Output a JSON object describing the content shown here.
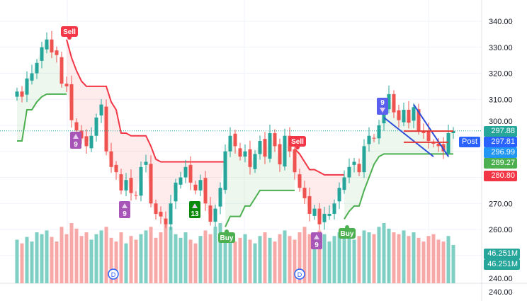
{
  "chart_data": {
    "type": "candlestick",
    "title": "",
    "ylim": [
      240,
      345
    ],
    "y_ticks": [
      "340.00",
      "330.00",
      "320.00",
      "310.00",
      "300.00",
      "270.00",
      "260.00",
      "240.00"
    ],
    "closes": [
      313,
      311,
      318,
      320,
      324,
      330,
      333,
      328,
      327,
      316,
      315,
      302,
      298,
      295,
      292,
      296,
      303,
      308,
      290,
      284,
      282,
      275,
      279,
      274,
      273,
      284,
      286,
      270,
      266,
      265,
      262,
      270,
      278,
      280,
      284,
      278,
      275,
      279,
      270,
      263,
      268,
      276,
      290,
      296,
      292,
      288,
      290,
      284,
      289,
      294,
      288,
      297,
      292,
      285,
      296,
      290,
      282,
      276,
      272,
      266,
      268,
      262,
      266,
      266,
      270,
      276,
      280,
      284,
      286,
      282,
      292,
      296,
      295,
      300,
      307,
      312,
      305,
      302,
      306,
      301,
      307,
      298,
      297,
      294,
      293,
      292,
      290,
      297,
      297.88
    ],
    "volumes": [
      52,
      48,
      55,
      50,
      60,
      58,
      62,
      55,
      50,
      66,
      58,
      70,
      64,
      56,
      60,
      52,
      58,
      62,
      66,
      54,
      50,
      60,
      48,
      56,
      52,
      58,
      62,
      66,
      54,
      60,
      72,
      66,
      58,
      54,
      60,
      52,
      48,
      56,
      62,
      58,
      66,
      70,
      60,
      56,
      50,
      54,
      58,
      52,
      48,
      56,
      60,
      54,
      50,
      58,
      62,
      56,
      52,
      60,
      66,
      58,
      54,
      62,
      58,
      50,
      56,
      60,
      64,
      58,
      52,
      56,
      62,
      60,
      58,
      66,
      70,
      64,
      60,
      58,
      62,
      56,
      60,
      54,
      50,
      56,
      58,
      52,
      50,
      56,
      46.251
    ],
    "supertrend": [
      {
        "trend": "up",
        "points": [
          [
            0,
            294
          ],
          [
            1,
            294
          ],
          [
            2,
            306
          ],
          [
            3,
            306
          ],
          [
            4,
            309
          ],
          [
            5,
            311
          ],
          [
            6,
            312
          ],
          [
            7,
            312
          ],
          [
            8,
            312
          ],
          [
            9,
            312
          ],
          [
            10,
            312
          ]
        ]
      },
      {
        "trend": "down",
        "points": [
          [
            10,
            333
          ],
          [
            11,
            326
          ],
          [
            12,
            321
          ],
          [
            13,
            317
          ],
          [
            14,
            315
          ],
          [
            15,
            315
          ],
          [
            16,
            315
          ],
          [
            17,
            315
          ],
          [
            18,
            315
          ],
          [
            19,
            309
          ],
          [
            20,
            306
          ],
          [
            21,
            297
          ],
          [
            22,
            297
          ],
          [
            23,
            296
          ],
          [
            24,
            296
          ],
          [
            25,
            296
          ],
          [
            26,
            296
          ],
          [
            27,
            292
          ],
          [
            28,
            287
          ],
          [
            29,
            286
          ],
          [
            30,
            286
          ],
          [
            31,
            286
          ],
          [
            32,
            286
          ],
          [
            33,
            286
          ],
          [
            34,
            286
          ],
          [
            35,
            286
          ],
          [
            36,
            286
          ],
          [
            37,
            286
          ],
          [
            38,
            286
          ],
          [
            39,
            286
          ],
          [
            40,
            286
          ],
          [
            41,
            286
          ],
          [
            42,
            286
          ]
        ]
      },
      {
        "trend": "up",
        "points": [
          [
            42,
            261
          ],
          [
            43,
            265
          ],
          [
            44,
            265
          ],
          [
            45,
            265
          ],
          [
            46,
            269
          ],
          [
            47,
            269
          ],
          [
            48,
            272
          ],
          [
            49,
            275
          ],
          [
            50,
            275
          ],
          [
            51,
            275
          ],
          [
            52,
            275
          ],
          [
            53,
            275
          ],
          [
            54,
            275
          ],
          [
            55,
            275
          ],
          [
            56,
            275
          ]
        ]
      },
      {
        "trend": "down",
        "points": [
          [
            56,
            291
          ],
          [
            57,
            289
          ],
          [
            58,
            286
          ],
          [
            59,
            283
          ],
          [
            60,
            283
          ],
          [
            61,
            282
          ],
          [
            62,
            281
          ],
          [
            63,
            281
          ],
          [
            64,
            281
          ],
          [
            65,
            281
          ],
          [
            66,
            281
          ]
        ]
      },
      {
        "trend": "up",
        "points": [
          [
            66,
            264
          ],
          [
            67,
            267
          ],
          [
            68,
            269
          ],
          [
            69,
            269
          ],
          [
            70,
            275
          ],
          [
            71,
            280
          ],
          [
            72,
            285
          ],
          [
            73,
            288
          ],
          [
            74,
            289
          ],
          [
            75,
            289
          ],
          [
            76,
            289
          ],
          [
            77,
            289
          ],
          [
            78,
            289
          ],
          [
            79,
            289
          ],
          [
            80,
            289
          ],
          [
            81,
            289
          ],
          [
            82,
            289
          ],
          [
            83,
            289
          ],
          [
            84,
            289
          ],
          [
            85,
            289
          ],
          [
            86,
            289
          ],
          [
            87,
            289
          ],
          [
            88,
            289
          ]
        ]
      }
    ],
    "signals": [
      {
        "type": "sell",
        "label": "Sell",
        "index": 10
      },
      {
        "type": "count",
        "label": "9",
        "index": 12,
        "dir": "up"
      },
      {
        "type": "count",
        "label": "9",
        "index": 22,
        "dir": "up"
      },
      {
        "type": "count13",
        "label": "13",
        "index": 36,
        "dir": "up"
      },
      {
        "type": "buy",
        "label": "Buy",
        "index": 42
      },
      {
        "type": "sell",
        "label": "Sell",
        "index": 57
      },
      {
        "type": "count",
        "label": "9",
        "index": 61,
        "dir": "up"
      },
      {
        "type": "buy",
        "label": "Buy",
        "index": 66
      },
      {
        "type": "countdown",
        "label": "9",
        "index": 74,
        "dir": "down"
      }
    ],
    "events": [
      {
        "label": "D",
        "index": 20
      },
      {
        "label": "D",
        "index": 57
      }
    ],
    "price_labels": [
      {
        "value": "297.88",
        "color": "#26a69a"
      },
      {
        "value": "297.81",
        "color": "#2962ff"
      },
      {
        "value": "296.99",
        "color": "#2196f3"
      },
      {
        "value": "289.27",
        "color": "#4caf50"
      },
      {
        "value": "280.80",
        "color": "#f23645"
      }
    ],
    "session_label": "Post",
    "volume_labels": [
      "46.251M",
      "46.251M"
    ],
    "volume_axis_label": "240.00",
    "trendlines": [
      [
        [
          74,
          303
        ],
        [
          84,
          288
        ]
      ],
      [
        [
          80,
          308
        ],
        [
          87,
          288
        ]
      ]
    ],
    "hlines": [
      [
        78,
        297.8,
        88
      ],
      [
        78,
        293.5,
        87
      ]
    ]
  }
}
